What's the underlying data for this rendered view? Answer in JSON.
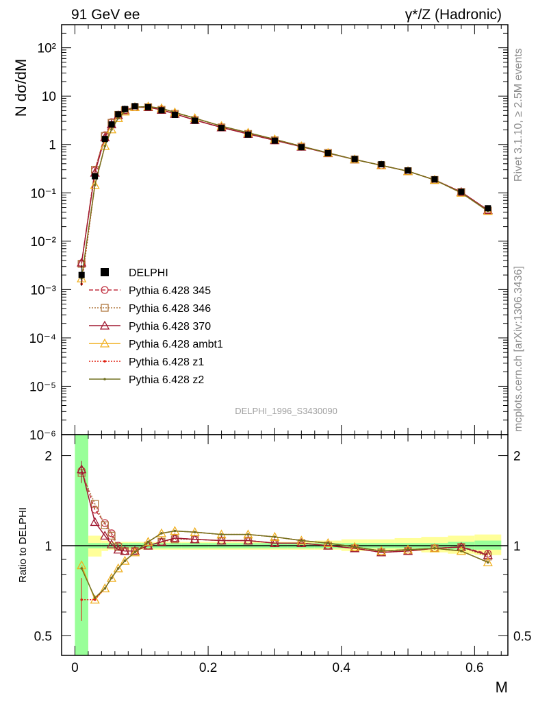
{
  "header": {
    "left": "91 GeV ee",
    "right": "γ*/Z (Hadronic)"
  },
  "side_text": {
    "top": "Rivet 3.1.10, ≥ 2.5M events",
    "bottom": "mcplots.cern.ch [arXiv:1306.3436]"
  },
  "analysis_id": "DELPHI_1996_S3430090",
  "chart_data": [
    {
      "type": "line",
      "panel": "main",
      "ylabel": "N dσ/dM",
      "xlabel": "M",
      "yscale": "log",
      "ylim": [
        1e-06,
        300
      ],
      "xlim": [
        -0.02,
        0.65
      ],
      "y_tick_labels": [
        "10⁻⁶",
        "10⁻⁵",
        "10⁻⁴",
        "10⁻³",
        "10⁻²",
        "10⁻¹",
        "1",
        "10",
        "10²"
      ],
      "legend": [
        {
          "name": "DELPHI",
          "color": "#000000",
          "marker": "square-filled",
          "line": "none"
        },
        {
          "name": "Pythia 6.428 345",
          "color": "#c03040",
          "marker": "circle-open",
          "line": "dashed"
        },
        {
          "name": "Pythia 6.428 346",
          "color": "#b07840",
          "marker": "square-open",
          "line": "dotted"
        },
        {
          "name": "Pythia 6.428 370",
          "color": "#a01830",
          "marker": "triangle-open",
          "line": "solid"
        },
        {
          "name": "Pythia 6.428 ambt1",
          "color": "#f0b020",
          "marker": "triangle-open",
          "line": "solid"
        },
        {
          "name": "Pythia 6.428 z1",
          "color": "#e02010",
          "marker": "dot",
          "line": "dotted"
        },
        {
          "name": "Pythia 6.428 z2",
          "color": "#707020",
          "marker": "dot",
          "line": "solid"
        }
      ],
      "data": {
        "x": [
          0.01,
          0.03,
          0.045,
          0.055,
          0.065,
          0.075,
          0.09,
          0.11,
          0.13,
          0.15,
          0.18,
          0.22,
          0.26,
          0.3,
          0.34,
          0.38,
          0.42,
          0.46,
          0.5,
          0.54,
          0.58,
          0.62
        ],
        "y": [
          0.002,
          0.22,
          1.3,
          2.6,
          4.2,
          5.4,
          6.2,
          5.9,
          5.1,
          4.1,
          3.1,
          2.2,
          1.6,
          1.2,
          0.88,
          0.66,
          0.5,
          0.39,
          0.29,
          0.19,
          0.105,
          0.048
        ]
      },
      "series": [
        {
          "name": "Pythia 6.428 345",
          "values": [
            0.0035,
            0.29,
            1.55,
            2.9,
            4.1,
            5.1,
            5.9,
            5.9,
            5.2,
            4.3,
            3.2,
            2.25,
            1.65,
            1.22,
            0.9,
            0.67,
            0.49,
            0.37,
            0.28,
            0.185,
            0.104,
            0.044
          ]
        },
        {
          "name": "Pythia 6.428 346",
          "values": [
            0.0034,
            0.3,
            1.5,
            2.8,
            4.1,
            5.1,
            5.9,
            5.9,
            5.2,
            4.3,
            3.2,
            2.25,
            1.65,
            1.22,
            0.9,
            0.67,
            0.49,
            0.37,
            0.28,
            0.185,
            0.104,
            0.043
          ]
        },
        {
          "name": "Pythia 6.428 370",
          "values": [
            0.0036,
            0.26,
            1.4,
            2.6,
            4.0,
            5.1,
            5.9,
            5.9,
            5.2,
            4.3,
            3.2,
            2.25,
            1.65,
            1.22,
            0.9,
            0.66,
            0.49,
            0.37,
            0.28,
            0.185,
            0.104,
            0.044
          ]
        },
        {
          "name": "Pythia 6.428 ambt1",
          "values": [
            0.0017,
            0.145,
            0.93,
            2.05,
            3.5,
            4.8,
            5.9,
            6.1,
            5.6,
            4.6,
            3.5,
            2.4,
            1.75,
            1.28,
            0.92,
            0.67,
            0.49,
            0.37,
            0.28,
            0.185,
            0.1,
            0.042
          ]
        },
        {
          "name": "Pythia 6.428 z1",
          "values": [
            0.0013,
            0.145,
            0.93,
            2.05,
            3.5,
            4.8,
            5.9,
            6.1,
            5.6,
            4.6,
            3.5,
            2.4,
            1.75,
            1.28,
            0.92,
            0.67,
            0.49,
            0.37,
            0.28,
            0.185,
            0.1,
            0.042
          ]
        },
        {
          "name": "Pythia 6.428 z2",
          "values": [
            0.0017,
            0.145,
            0.93,
            2.05,
            3.5,
            4.8,
            5.9,
            6.1,
            5.6,
            4.6,
            3.5,
            2.4,
            1.75,
            1.28,
            0.92,
            0.67,
            0.49,
            0.37,
            0.28,
            0.185,
            0.1,
            0.042
          ]
        }
      ]
    },
    {
      "type": "line",
      "panel": "ratio",
      "ylabel": "Ratio to DELPHI",
      "xlabel": "M",
      "yscale": "log",
      "ylim": [
        0.43,
        2.35
      ],
      "xlim": [
        -0.02,
        0.65
      ],
      "y_ticks": [
        0.5,
        1,
        2
      ],
      "y_tick_labels": [
        "0.5",
        "1",
        "2"
      ],
      "x_ticks": [
        0,
        0.2,
        0.4,
        0.6
      ],
      "x_tick_labels": [
        "0",
        "0.2",
        "0.4",
        "0.6"
      ],
      "uncertainty_bands": {
        "edges": [
          0.0,
          0.02,
          0.04,
          0.05,
          0.06,
          0.07,
          0.08,
          0.1,
          0.12,
          0.14,
          0.16,
          0.2,
          0.24,
          0.28,
          0.32,
          0.36,
          0.4,
          0.44,
          0.48,
          0.52,
          0.56,
          0.6,
          0.64
        ],
        "yellow_lo": [
          0.43,
          0.92,
          0.96,
          0.97,
          0.97,
          0.97,
          0.97,
          0.97,
          0.97,
          0.97,
          0.97,
          0.97,
          0.97,
          0.97,
          0.97,
          0.97,
          0.96,
          0.96,
          0.96,
          0.95,
          0.94,
          0.93
        ],
        "yellow_hi": [
          2.35,
          1.08,
          1.04,
          1.03,
          1.03,
          1.03,
          1.03,
          1.03,
          1.03,
          1.03,
          1.03,
          1.03,
          1.03,
          1.03,
          1.03,
          1.04,
          1.05,
          1.05,
          1.06,
          1.07,
          1.08,
          1.09
        ],
        "green_lo": [
          0.43,
          0.98,
          0.98,
          0.98,
          0.98,
          0.98,
          0.98,
          0.98,
          0.98,
          0.98,
          0.98,
          0.98,
          0.98,
          0.98,
          0.98,
          0.98,
          0.98,
          0.98,
          0.98,
          0.98,
          0.97,
          0.97
        ],
        "green_hi": [
          2.35,
          1.02,
          1.02,
          1.02,
          1.02,
          1.02,
          1.02,
          1.02,
          1.02,
          1.02,
          1.02,
          1.02,
          1.02,
          1.02,
          1.02,
          1.02,
          1.02,
          1.02,
          1.02,
          1.02,
          1.03,
          1.04
        ]
      },
      "x": [
        0.01,
        0.03,
        0.045,
        0.055,
        0.065,
        0.075,
        0.09,
        0.11,
        0.13,
        0.15,
        0.18,
        0.22,
        0.26,
        0.3,
        0.34,
        0.38,
        0.42,
        0.46,
        0.5,
        0.54,
        0.58,
        0.62
      ],
      "series": [
        {
          "name": "Pythia 6.428 345",
          "values": [
            1.78,
            1.32,
            1.19,
            1.1,
            1.0,
            0.96,
            0.96,
            1.0,
            1.03,
            1.06,
            1.05,
            1.04,
            1.04,
            1.02,
            1.02,
            1.0,
            0.98,
            0.95,
            0.96,
            0.98,
            0.99,
            0.94
          ]
        },
        {
          "name": "Pythia 6.428 346",
          "values": [
            1.75,
            1.38,
            1.17,
            1.08,
            0.99,
            0.96,
            0.96,
            1.0,
            1.03,
            1.05,
            1.05,
            1.04,
            1.04,
            1.02,
            1.02,
            1.0,
            0.98,
            0.95,
            0.96,
            0.98,
            0.99,
            0.92
          ]
        },
        {
          "name": "Pythia 6.428 370",
          "values": [
            1.8,
            1.2,
            1.08,
            1.01,
            0.97,
            0.96,
            0.96,
            1.0,
            1.03,
            1.06,
            1.05,
            1.04,
            1.04,
            1.02,
            1.02,
            1.0,
            0.98,
            0.95,
            0.96,
            0.98,
            0.99,
            0.93
          ]
        },
        {
          "name": "Pythia 6.428 ambt1",
          "values": [
            0.86,
            0.66,
            0.72,
            0.78,
            0.84,
            0.89,
            0.95,
            1.03,
            1.1,
            1.12,
            1.11,
            1.09,
            1.09,
            1.07,
            1.04,
            1.02,
            0.99,
            0.96,
            0.97,
            0.98,
            0.96,
            0.88
          ]
        },
        {
          "name": "Pythia 6.428 z1",
          "values": [
            0.66,
            0.66,
            0.72,
            0.78,
            0.84,
            0.89,
            0.95,
            1.03,
            1.1,
            1.12,
            1.11,
            1.09,
            1.09,
            1.07,
            1.04,
            1.02,
            0.99,
            0.96,
            0.97,
            0.98,
            0.96,
            0.88
          ]
        },
        {
          "name": "Pythia 6.428 z2",
          "values": [
            0.84,
            0.67,
            0.72,
            0.78,
            0.84,
            0.89,
            0.95,
            1.03,
            1.1,
            1.12,
            1.11,
            1.09,
            1.09,
            1.07,
            1.04,
            1.02,
            0.99,
            0.96,
            0.97,
            0.98,
            0.96,
            0.88
          ]
        }
      ]
    }
  ]
}
